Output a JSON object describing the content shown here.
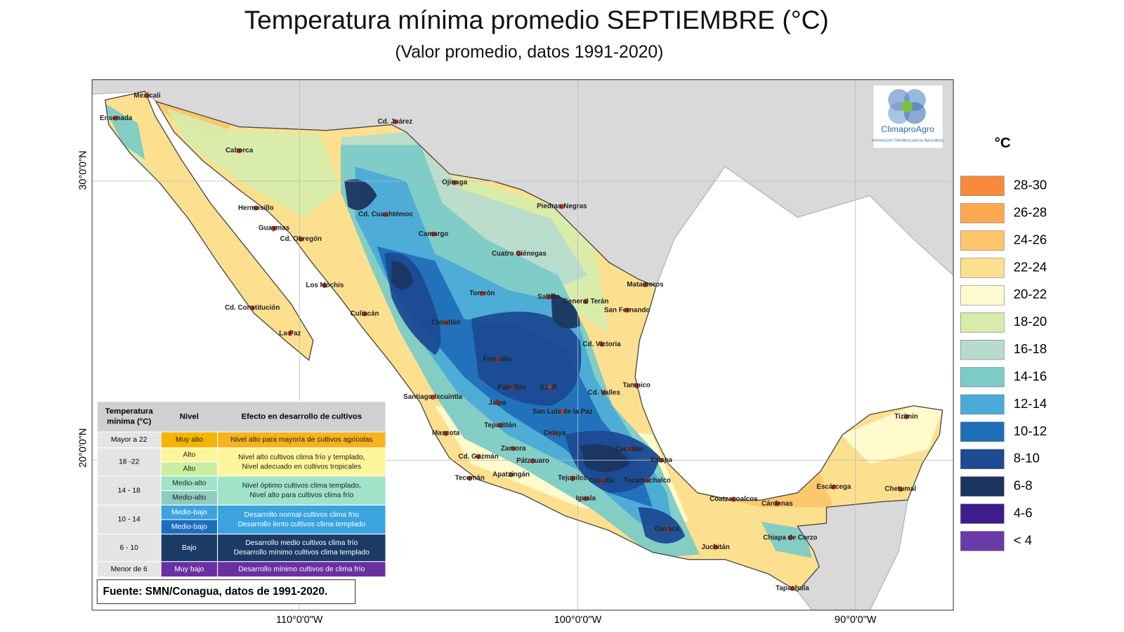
{
  "title": "Temperatura mínima promedio SEPTIEMBRE (°C)",
  "subtitle": "(Valor promedio, datos 1991-2020)",
  "logo": {
    "name": "ClimaproAgro",
    "tagline": "Información Climática para la Agricultura"
  },
  "axes": {
    "lat_labels": [
      "30°0'0\"N",
      "20°0'0\"N"
    ],
    "lon_labels": [
      "110°0'0\"W",
      "100°0'0\"W",
      "90°0'0\"W"
    ]
  },
  "legend": {
    "unit": "°C",
    "items": [
      {
        "label": "28-30",
        "color": "#f98a3c"
      },
      {
        "label": "26-28",
        "color": "#fba94e"
      },
      {
        "label": "24-26",
        "color": "#fdc56a"
      },
      {
        "label": "22-24",
        "color": "#fde08f"
      },
      {
        "label": "20-22",
        "color": "#fefbd0"
      },
      {
        "label": "18-20",
        "color": "#d7ecab"
      },
      {
        "label": "16-18",
        "color": "#b7dccd"
      },
      {
        "label": "14-16",
        "color": "#7ccbc6"
      },
      {
        "label": "12-14",
        "color": "#4aabd8"
      },
      {
        "label": "10-12",
        "color": "#1f6fb8"
      },
      {
        "label": "8-10",
        "color": "#1c4a93"
      },
      {
        "label": "6-8",
        "color": "#1b3560"
      },
      {
        "label": "4-6",
        "color": "#3f1c8c"
      },
      {
        "label": "< 4",
        "color": "#6a3aa8"
      }
    ]
  },
  "cities": [
    "Mexicali",
    "Ensenada",
    "Cd. Juárez",
    "Caborca",
    "Ojinaga",
    "Hermosillo",
    "Cd. Cuauhtémoc",
    "Piedras Negras",
    "Guaymas",
    "Cd. Obregón",
    "Camargo",
    "Cuatro Ciénegas",
    "Los Mochis",
    "Matamoros",
    "Torreón",
    "Saltillo",
    "General Terán",
    "Cd. Constitución",
    "San Fernando",
    "Culiacán",
    "Canatlán",
    "La Paz",
    "Cd. Victoria",
    "Fresnillo",
    "Tampico",
    "Pabellón",
    "S.L.P.",
    "Cd. Valles",
    "Santiago Ixcuintla",
    "Jalpa",
    "San Luis de la Paz",
    "Tepatitlán",
    "Tizimín",
    "Celaya",
    "Mascota",
    "Zamora",
    "Zacatlán",
    "Cd. Guzmán",
    "Pátzcuaro",
    "Xalapa",
    "Apatzingán",
    "Tecomán",
    "Tejupilco",
    "Cuautla",
    "Tecamachalco",
    "Escárcega",
    "Chetumal",
    "Iguala",
    "Coatzacoalcos",
    "Cárdenas",
    "Oaxaca",
    "Chiapa de Corzo",
    "Juchitán",
    "Tapachula"
  ],
  "table": {
    "header": [
      "Temperatura mínima (°C)",
      "Nivel",
      "Efecto en desarrollo de cultivos"
    ],
    "rows": [
      {
        "range": "Mayor a 22",
        "levels": [
          {
            "label": "Muy alto",
            "color": "#f5b400"
          }
        ],
        "effect": [
          "Nivel alto para mayoría de cultivos agrícolas"
        ],
        "effect_color": "#f7b21c"
      },
      {
        "range": "18 -22",
        "levels": [
          {
            "label": "Alto",
            "color": "#fdf59a"
          },
          {
            "label": "Alto",
            "color": "#c9eea0"
          }
        ],
        "effect": [
          "Nivel alto cultivos clima frío y templado,",
          "Nivel adecuado en cultivos tropicales"
        ],
        "effect_color": "#fdf59a"
      },
      {
        "range": "14 - 18",
        "levels": [
          {
            "label": "Medio-alto",
            "color": "#9fe3c9"
          },
          {
            "label": "Medio-alto",
            "color": "#8fcbc0"
          }
        ],
        "effect": [
          "Nivel óptimo cultivos clima templado,",
          "Nivel alto para cultivos clima frío"
        ],
        "effect_color": "#9fe3c9"
      },
      {
        "range": "10 - 14",
        "levels": [
          {
            "label": "Medio-bajo",
            "color": "#3aa3e0"
          },
          {
            "label": "Medio-bajo",
            "color": "#1c6fc0"
          }
        ],
        "effect": [
          "Desarrollo normal cultivos clima frío",
          "Desarrollo lento  cultivos clima templado"
        ],
        "effect_color": "#3aa3e0"
      },
      {
        "range": "6 - 10",
        "levels": [
          {
            "label": "Bajo",
            "color": "#1b3a66"
          }
        ],
        "effect": [
          "Desarrollo medio cultivos clima frío",
          "Desarrollo mínimo cultivos clima templado"
        ],
        "effect_color": "#1b3a66"
      },
      {
        "range": "Menor de 6",
        "levels": [
          {
            "label": "Muy bajo",
            "color": "#6a2fa0"
          }
        ],
        "effect": [
          "Desarrollo mínimo cultivos de clima frío"
        ],
        "effect_color": "#6a2fa0"
      }
    ]
  },
  "source": "Fuente: SMN/Conagua, datos de 1991-2020."
}
